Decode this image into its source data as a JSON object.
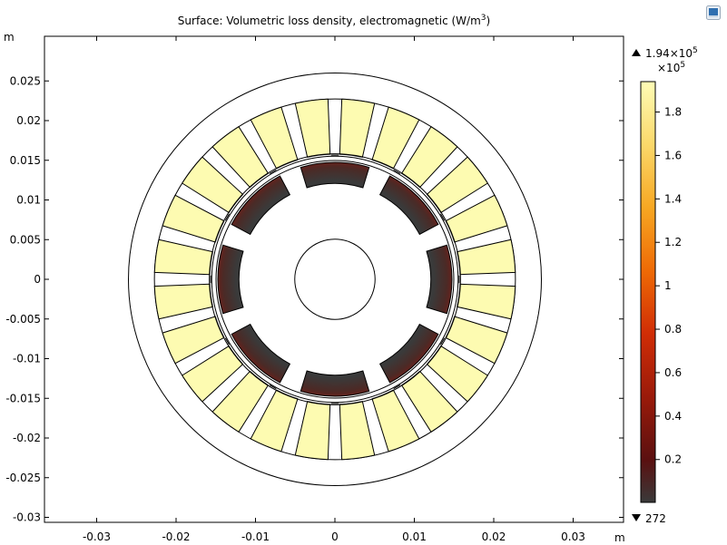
{
  "chart_data": {
    "type": "heatmap",
    "title": "Surface: Volumetric loss density, electromagnetic (W/m",
    "title_sup": "3",
    "title_suffix": ")",
    "x_unit": "m",
    "y_unit": "m",
    "xlim": [
      -0.0368,
      0.0368
    ],
    "ylim": [
      -0.0307,
      0.0307
    ],
    "x_ticks": [
      -0.03,
      -0.02,
      -0.01,
      0,
      0.01,
      0.02,
      0.03
    ],
    "x_tick_labels": [
      "-0.03",
      "-0.02",
      "-0.01",
      "0",
      "0.01",
      "0.02",
      "0.03"
    ],
    "y_ticks": [
      0.025,
      0.02,
      0.015,
      0.01,
      0.005,
      0,
      -0.005,
      -0.01,
      -0.015,
      -0.02,
      -0.025,
      -0.03
    ],
    "y_tick_labels": [
      "0.025",
      "0.02",
      "0.015",
      "0.01",
      "0.005",
      "0",
      "-0.005",
      "-0.01",
      "-0.015",
      "-0.02",
      "-0.025",
      "-0.03"
    ],
    "colorbar": {
      "colormap": "heat",
      "max_label_base": "1.94×10",
      "max_label_exp": "5",
      "scale_label_base": "×10",
      "scale_label_exp": "5",
      "min_label": "272",
      "range": [
        0.00272,
        1.94
      ],
      "ticks": [
        1.8,
        1.6,
        1.4,
        1.2,
        1,
        0.8,
        0.6,
        0.4,
        0.2
      ],
      "tick_labels": [
        "1.8",
        "1.6",
        "1.4",
        "1.2",
        "1",
        "0.8",
        "0.6",
        "0.4",
        "0.2"
      ]
    },
    "geometry": {
      "outer_circle_r": 0.0233,
      "stator_outer_r": 0.0236,
      "stator_inner_r": 0.0151,
      "airgap_r": [
        0.0154,
        0.0157
      ],
      "rotor_outer_r": 0.0152,
      "shaft_r": 0.005,
      "slots": 12,
      "magnets": 8
    },
    "regions": [
      {
        "name": "stator coils",
        "value_x1e5": 1.94,
        "color": "#fdfbb1"
      },
      {
        "name": "rotor magnets",
        "value_x1e5": 0.05,
        "color": "#4a2a2a"
      },
      {
        "name": "iron and air",
        "value_x1e5": 0.00272,
        "color": "#ffffff"
      }
    ]
  }
}
